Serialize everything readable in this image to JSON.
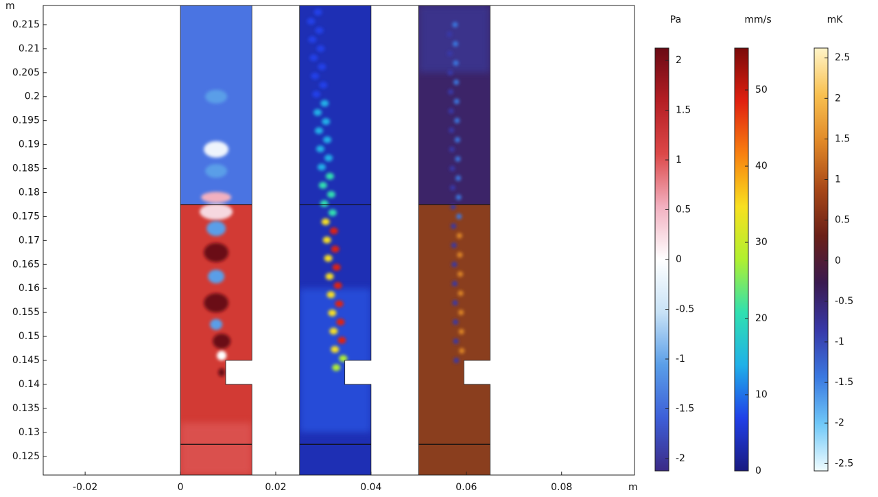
{
  "chart_data": {
    "type": "field",
    "x_unit": "m",
    "y_unit": "m",
    "xlim": [
      -0.0288,
      0.0953
    ],
    "ylim": [
      0.1211,
      0.219
    ],
    "xticks": [
      -0.02,
      0,
      0.02,
      0.04,
      0.06,
      0.08
    ],
    "yticks": [
      0.125,
      0.13,
      0.135,
      0.14,
      0.145,
      0.15,
      0.155,
      0.16,
      0.165,
      0.17,
      0.175,
      0.18,
      0.185,
      0.19,
      0.195,
      0.2,
      0.205,
      0.21,
      0.215
    ],
    "colorbars": [
      {
        "unit": "Pa",
        "lim": [
          -2.124,
          2.124
        ],
        "ticks": [
          -2,
          -1.5,
          -1,
          -0.5,
          0,
          0.5,
          1,
          1.5,
          2
        ],
        "colors": [
          "#3b2a86",
          "#3d5fd8",
          "#5a9ee8",
          "#c8e2f6",
          "#ffffff",
          "#f2b0c0",
          "#dc4848",
          "#b41e24",
          "#6a0a14"
        ]
      },
      {
        "unit": "mm/s",
        "lim": [
          0,
          55.5
        ],
        "ticks": [
          0,
          10,
          20,
          30,
          40,
          50
        ],
        "colors": [
          "#1a1a80",
          "#2040e8",
          "#20b0e8",
          "#30e0b0",
          "#b0f030",
          "#f8e020",
          "#f88010",
          "#e02010",
          "#7a0a0a"
        ]
      },
      {
        "unit": "mK",
        "lim": [
          -2.59,
          2.62
        ],
        "ticks": [
          -2.5,
          -2,
          -1.5,
          -1,
          -0.5,
          0,
          0.5,
          1,
          1.5,
          2,
          2.5
        ],
        "colors": [
          "#f0fcff",
          "#70c8f8",
          "#3a78e0",
          "#3838a8",
          "#3a1a50",
          "#6a2018",
          "#a84818",
          "#e08828",
          "#f8c050",
          "#fff4c8"
        ]
      }
    ]
  }
}
